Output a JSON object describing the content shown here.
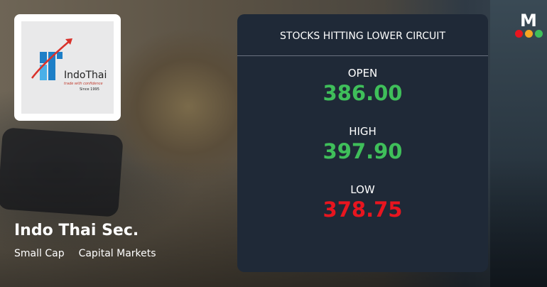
{
  "company": {
    "name": "Indo Thai Sec.",
    "tags": [
      "Small Cap",
      "Capital Markets"
    ],
    "logo": {
      "brand": "IndoThai",
      "tagline": "trade with confidence",
      "since": "Since 1995"
    }
  },
  "panel": {
    "title": "STOCKS HITTING LOWER CIRCUIT",
    "open": {
      "label": "OPEN",
      "value": "386.00",
      "color": "#3fbf5a"
    },
    "high": {
      "label": "HIGH",
      "value": "397.90",
      "color": "#3fbf5a"
    },
    "low": {
      "label": "LOW",
      "value": "378.75",
      "color": "#e8151f"
    }
  },
  "brand_logo": {
    "letter": "M",
    "dot_colors": [
      "#e8151f",
      "#f5a623",
      "#3fbf5a"
    ]
  }
}
